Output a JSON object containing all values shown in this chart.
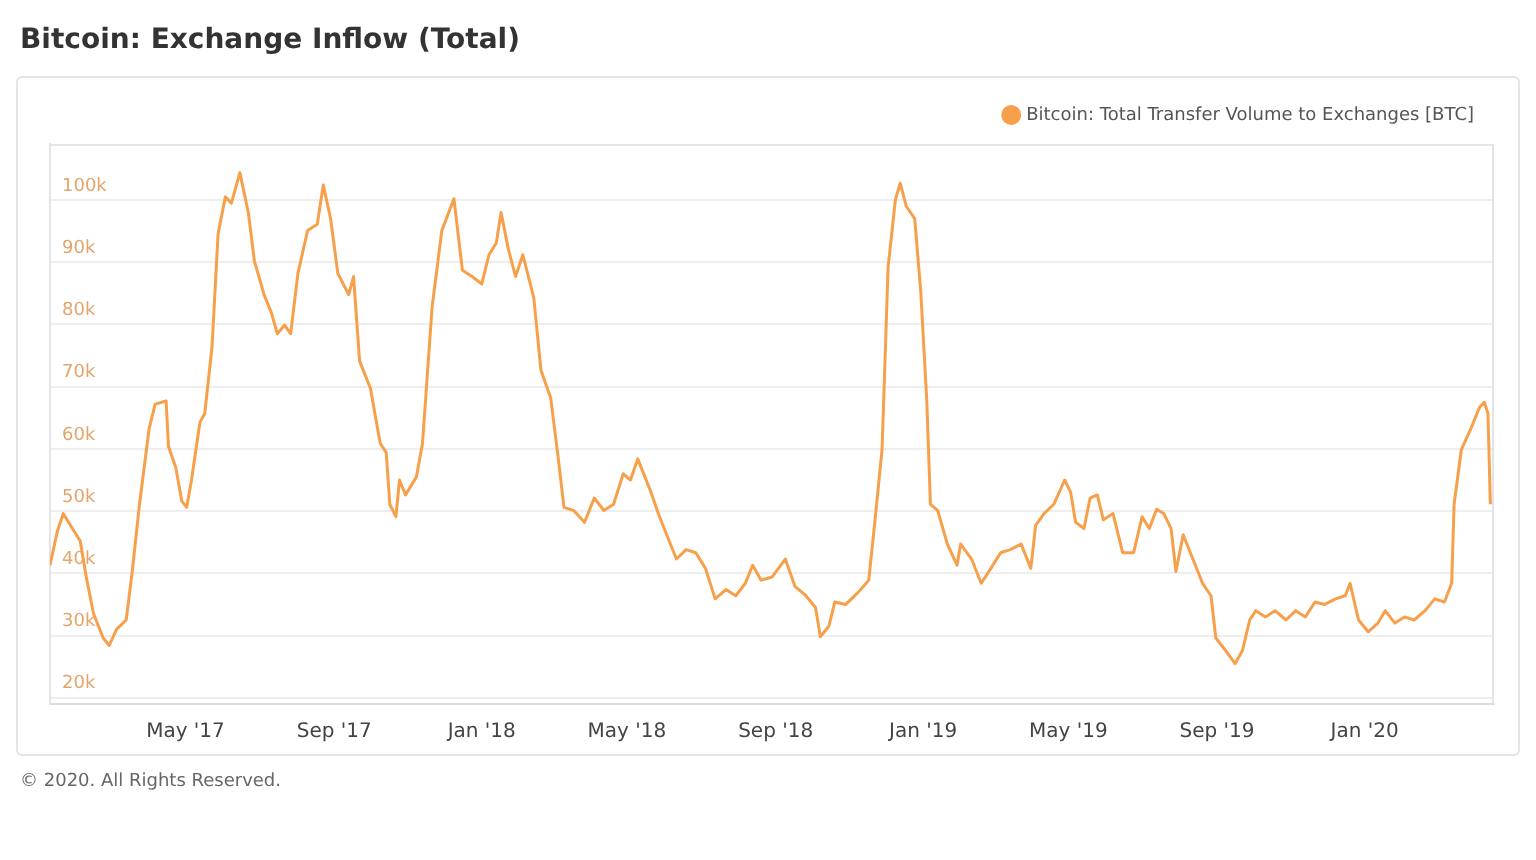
{
  "chart_data": {
    "type": "line",
    "title": "Bitcoin: Exchange Inflow (Total)",
    "annotations": [
      "© 2020. All Rights Reserved."
    ],
    "x": [
      "2017-01-09",
      "2017-01-15",
      "2017-01-20",
      "2017-01-26",
      "2017-02-03",
      "2017-02-08",
      "2017-02-14",
      "2017-02-22",
      "2017-02-27",
      "2017-03-05",
      "2017-03-13",
      "2017-03-18",
      "2017-03-24",
      "2017-04-01",
      "2017-04-06",
      "2017-04-15",
      "2017-04-17",
      "2017-04-23",
      "2017-04-28",
      "2017-05-02",
      "2017-05-06",
      "2017-05-13",
      "2017-05-17",
      "2017-05-23",
      "2017-05-28",
      "2017-06-03",
      "2017-06-08",
      "2017-06-15",
      "2017-06-22",
      "2017-06-27",
      "2017-07-05",
      "2017-07-11",
      "2017-07-16",
      "2017-07-22",
      "2017-07-27",
      "2017-08-02",
      "2017-08-10",
      "2017-08-18",
      "2017-08-23",
      "2017-08-29",
      "2017-09-04",
      "2017-09-13",
      "2017-09-17",
      "2017-09-22",
      "2017-10-01",
      "2017-10-09",
      "2017-10-14",
      "2017-10-17",
      "2017-10-22",
      "2017-10-25",
      "2017-10-30",
      "2017-11-08",
      "2017-11-13",
      "2017-11-21",
      "2017-11-29",
      "2017-12-09",
      "2017-12-16",
      "2017-12-24",
      "2018-01-01",
      "2018-01-07",
      "2018-01-13",
      "2018-01-17",
      "2018-01-23",
      "2018-01-29",
      "2018-02-04",
      "2018-02-13",
      "2018-02-19",
      "2018-02-27",
      "2018-03-05",
      "2018-03-10",
      "2018-03-18",
      "2018-03-27",
      "2018-04-04",
      "2018-04-12",
      "2018-04-20",
      "2018-04-28",
      "2018-05-04",
      "2018-05-10",
      "2018-05-20",
      "2018-05-28",
      "2018-06-05",
      "2018-06-11",
      "2018-06-19",
      "2018-06-27",
      "2018-07-05",
      "2018-07-13",
      "2018-07-22",
      "2018-07-30",
      "2018-08-07",
      "2018-08-13",
      "2018-08-20",
      "2018-08-29",
      "2018-09-09",
      "2018-09-17",
      "2018-09-26",
      "2018-10-04",
      "2018-10-08",
      "2018-10-15",
      "2018-10-20",
      "2018-10-29",
      "2018-11-08",
      "2018-11-17",
      "2018-11-22",
      "2018-11-28",
      "2018-12-03",
      "2018-12-09",
      "2018-12-13",
      "2018-12-18",
      "2018-12-25",
      "2018-12-30",
      "2019-01-04",
      "2019-01-07",
      "2019-01-13",
      "2019-01-21",
      "2019-01-29",
      "2019-02-01",
      "2019-02-10",
      "2019-02-18",
      "2019-02-26",
      "2019-03-06",
      "2019-03-14",
      "2019-03-23",
      "2019-03-31",
      "2019-04-04",
      "2019-04-11",
      "2019-04-19",
      "2019-04-28",
      "2019-05-03",
      "2019-05-07",
      "2019-05-14",
      "2019-05-19",
      "2019-05-25",
      "2019-05-30",
      "2019-06-07",
      "2019-06-15",
      "2019-06-24",
      "2019-07-01",
      "2019-07-07",
      "2019-07-13",
      "2019-07-19",
      "2019-07-25",
      "2019-07-29",
      "2019-08-04",
      "2019-08-12",
      "2019-08-20",
      "2019-08-27",
      "2019-08-31",
      "2019-09-08",
      "2019-09-16",
      "2019-09-22",
      "2019-09-28",
      "2019-10-03",
      "2019-10-11",
      "2019-10-19",
      "2019-10-28",
      "2019-11-05",
      "2019-11-13",
      "2019-11-21",
      "2019-11-29",
      "2019-12-08",
      "2019-12-16",
      "2019-12-20",
      "2019-12-27",
      "2020-01-04",
      "2020-01-12",
      "2020-01-18",
      "2020-01-26",
      "2020-02-03",
      "2020-02-11",
      "2020-02-20",
      "2020-02-28",
      "2020-03-07",
      "2020-03-13",
      "2020-03-15",
      "2020-03-21",
      "2020-03-29",
      "2020-04-05",
      "2020-04-09",
      "2020-04-12",
      "2020-04-14"
    ],
    "series": [
      {
        "name": "Bitcoin: Total Transfer Volume to Exchanges [BTC]",
        "color": "#f7a04b",
        "values": [
          41300,
          46700,
          49600,
          47700,
          45200,
          39400,
          33500,
          29600,
          28400,
          31000,
          32500,
          40300,
          51100,
          63300,
          67200,
          67700,
          60400,
          57000,
          51600,
          50600,
          55000,
          64300,
          65700,
          76500,
          94600,
          100500,
          99500,
          104400,
          98000,
          90200,
          84800,
          81900,
          78500,
          79900,
          78500,
          88200,
          95100,
          96100,
          102400,
          97000,
          88200,
          84800,
          87700,
          74100,
          69700,
          60900,
          59400,
          51100,
          49100,
          55000,
          52600,
          55500,
          60900,
          82900,
          95100,
          100200,
          88700,
          87700,
          86500,
          91200,
          93100,
          98000,
          92100,
          87700,
          91200,
          84300,
          72600,
          68200,
          58900,
          50600,
          50100,
          48200,
          52100,
          50100,
          51100,
          56000,
          55000,
          58400,
          53500,
          49100,
          45200,
          42300,
          43800,
          43300,
          40800,
          35900,
          37400,
          36400,
          38400,
          41300,
          38900,
          39400,
          42300,
          37900,
          36400,
          34500,
          29800,
          31500,
          35400,
          35000,
          36900,
          38900,
          48200,
          59900,
          89200,
          100000,
          102700,
          99000,
          97000,
          85300,
          67700,
          51100,
          50100,
          44700,
          41300,
          44700,
          42300,
          38400,
          40800,
          43300,
          43800,
          44700,
          40800,
          47700,
          49600,
          51100,
          55000,
          53000,
          48200,
          47200,
          52100,
          52600,
          48600,
          49600,
          43300,
          43300,
          49100,
          47200,
          50300,
          49600,
          47200,
          40300,
          46200,
          42300,
          38400,
          36400,
          29600,
          27600,
          25500,
          27600,
          32500,
          34000,
          33000,
          34000,
          32500,
          34000,
          33000,
          35400,
          35000,
          35900,
          36400,
          38400,
          32500,
          30600,
          32000,
          34000,
          32000,
          33000,
          32500,
          34000,
          35900,
          35400,
          38400,
          51100,
          59900,
          63300,
          66700,
          67500,
          65700,
          51100
        ]
      }
    ],
    "xlim": [
      "2017-01-09",
      "2020-04-17"
    ],
    "xticks": [
      {
        "value": "2017-05-01",
        "label": "May '17"
      },
      {
        "value": "2017-09-01",
        "label": "Sep '17"
      },
      {
        "value": "2018-01-01",
        "label": "Jan '18"
      },
      {
        "value": "2018-05-01",
        "label": "May '18"
      },
      {
        "value": "2018-09-01",
        "label": "Sep '18"
      },
      {
        "value": "2019-01-01",
        "label": "Jan '19"
      },
      {
        "value": "2019-05-01",
        "label": "May '19"
      },
      {
        "value": "2019-09-01",
        "label": "Sep '19"
      },
      {
        "value": "2020-01-01",
        "label": "Jan '20"
      }
    ],
    "ylim": [
      19000,
      109000
    ],
    "yticks": [
      {
        "value": 20000,
        "label": "20k"
      },
      {
        "value": 30000,
        "label": "30k"
      },
      {
        "value": 40000,
        "label": "40k"
      },
      {
        "value": 50000,
        "label": "50k"
      },
      {
        "value": 60000,
        "label": "60k"
      },
      {
        "value": 70000,
        "label": "70k"
      },
      {
        "value": 80000,
        "label": "80k"
      },
      {
        "value": 90000,
        "label": "90k"
      },
      {
        "value": 100000,
        "label": "100k"
      }
    ],
    "grid": "y",
    "legend": "top right",
    "marker": "none",
    "line_style": "solid"
  }
}
